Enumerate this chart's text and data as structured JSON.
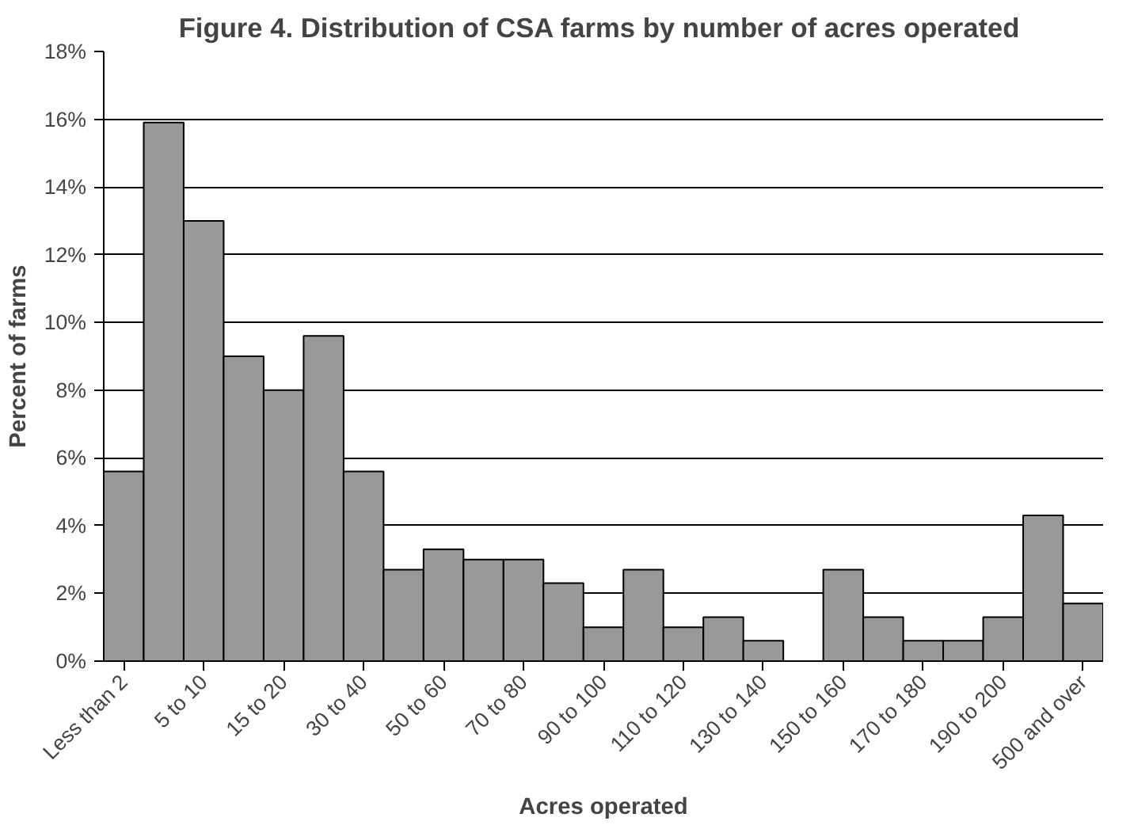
{
  "chart_data": {
    "type": "bar",
    "title": "Figure 4.  Distribution of CSA farms by number of acres operated",
    "xlabel": "Acres operated",
    "ylabel": "Percent of farms",
    "categories": [
      "Less than 2",
      null,
      "5 to 10",
      null,
      "15 to 20",
      null,
      "30 to 40",
      null,
      "50 to 60",
      null,
      "70 to 80",
      null,
      "90 to 100",
      null,
      "110 to 120",
      null,
      "130 to 140",
      null,
      "150 to 160",
      null,
      "170 to 180",
      null,
      "190 to 200",
      null,
      "500 and over"
    ],
    "values": [
      5.6,
      15.9,
      13.0,
      9.0,
      8.0,
      9.6,
      5.6,
      2.7,
      3.3,
      3.0,
      3.0,
      2.3,
      1.0,
      2.7,
      1.0,
      1.3,
      0.6,
      0,
      2.7,
      1.3,
      0.6,
      0.6,
      1.3,
      4.3,
      1.7
    ],
    "color": "#999999",
    "ylim": [
      0,
      18
    ],
    "yticks": [
      {
        "value": 0,
        "label": "0%"
      },
      {
        "value": 2,
        "label": "2%"
      },
      {
        "value": 4,
        "label": "4%"
      },
      {
        "value": 6,
        "label": "6%"
      },
      {
        "value": 8,
        "label": "8%"
      },
      {
        "value": 10,
        "label": "10%"
      },
      {
        "value": 12,
        "label": "12%"
      },
      {
        "value": 14,
        "label": "14%"
      },
      {
        "value": 16,
        "label": "16%"
      },
      {
        "value": 18,
        "label": "18%"
      }
    ],
    "grid": "y"
  }
}
